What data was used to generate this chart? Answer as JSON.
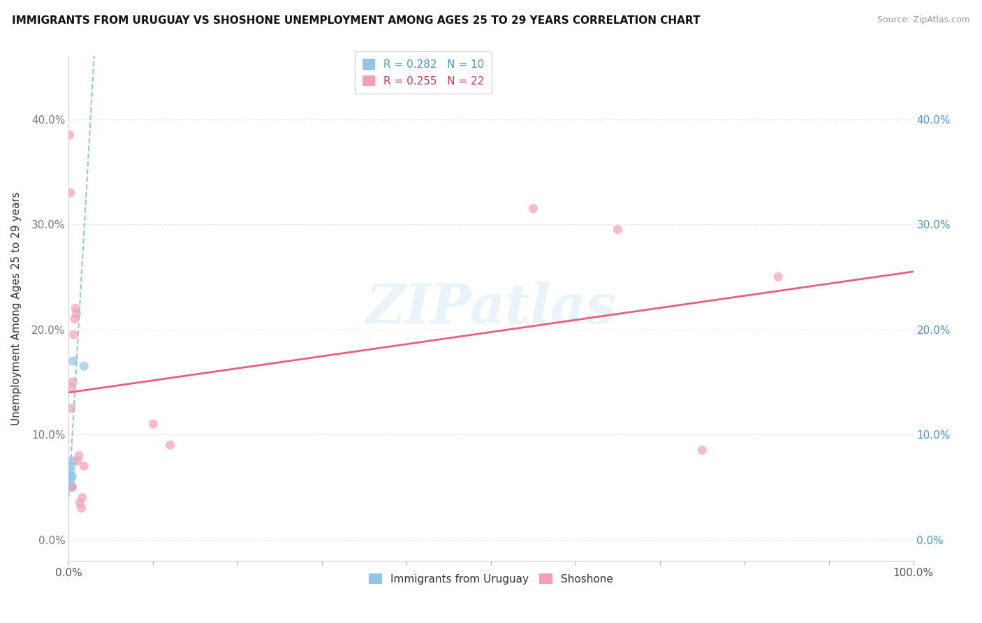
{
  "title": "IMMIGRANTS FROM URUGUAY VS SHOSHONE UNEMPLOYMENT AMONG AGES 25 TO 29 YEARS CORRELATION CHART",
  "source": "Source: ZipAtlas.com",
  "ylabel": "Unemployment Among Ages 25 to 29 years",
  "xlim": [
    0,
    1.0
  ],
  "ylim": [
    -0.02,
    0.46
  ],
  "yticks": [
    0.0,
    0.1,
    0.2,
    0.3,
    0.4
  ],
  "ytick_labels": [
    "0.0%",
    "10.0%",
    "20.0%",
    "30.0%",
    "40.0%"
  ],
  "xticks": [
    0.0,
    0.1,
    0.2,
    0.3,
    0.4,
    0.5,
    0.6,
    0.7,
    0.8,
    0.9,
    1.0
  ],
  "xtick_labels_show": [
    "0.0%",
    "",
    "",
    "",
    "",
    "",
    "",
    "",
    "",
    "",
    "100.0%"
  ],
  "legend_r1": "R = 0.282",
  "legend_n1": "N = 10",
  "legend_r2": "R = 0.255",
  "legend_n2": "N = 22",
  "watermark": "ZIPatlas",
  "blue_scatter_x": [
    0.002,
    0.002,
    0.003,
    0.003,
    0.003,
    0.004,
    0.004,
    0.004,
    0.005,
    0.018
  ],
  "blue_scatter_y": [
    0.055,
    0.065,
    0.05,
    0.06,
    0.07,
    0.05,
    0.06,
    0.075,
    0.17,
    0.165
  ],
  "pink_scatter_x": [
    0.001,
    0.002,
    0.003,
    0.003,
    0.004,
    0.005,
    0.006,
    0.007,
    0.008,
    0.009,
    0.01,
    0.012,
    0.013,
    0.015,
    0.016,
    0.018,
    0.1,
    0.12,
    0.55,
    0.65,
    0.75,
    0.84
  ],
  "pink_scatter_y": [
    0.385,
    0.33,
    0.125,
    0.145,
    0.05,
    0.15,
    0.195,
    0.21,
    0.22,
    0.215,
    0.075,
    0.08,
    0.035,
    0.03,
    0.04,
    0.07,
    0.11,
    0.09,
    0.315,
    0.295,
    0.085,
    0.25
  ],
  "blue_line_x": [
    0.0,
    1.0
  ],
  "blue_line_y": [
    0.04,
    14.0
  ],
  "pink_line_x": [
    0.0,
    1.0
  ],
  "pink_line_y": [
    0.14,
    0.255
  ],
  "blue_color": "#92C5E8",
  "pink_color": "#F4A0B5",
  "blue_line_color": "#92C5E8",
  "pink_line_color": "#E8607A",
  "scatter_size": 90,
  "background_color": "#ffffff",
  "grid_color": "#e8e8e8"
}
